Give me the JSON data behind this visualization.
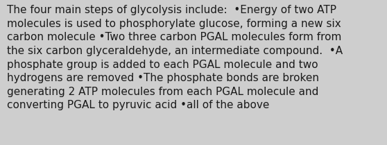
{
  "background_color": "#cecece",
  "text_color": "#1a1a1a",
  "lines": [
    "The four main steps of glycolysis include:  •Energy of two ATP",
    "molecules is used to phosphorylate glucose, forming a new six",
    "carbon molecule •Two three carbon PGAL molecules form from",
    "the six carbon glyceraldehyde, an intermediate compound.  •A",
    "phosphate group is added to each PGAL molecule and two",
    "hydrogens are removed •The phosphate bonds are broken",
    "generating 2 ATP molecules from each PGAL molecule and",
    "converting PGAL to pyruvic acid •all of the above"
  ],
  "font_size": 11.0,
  "fig_width": 5.58,
  "fig_height": 2.09,
  "dpi": 100
}
